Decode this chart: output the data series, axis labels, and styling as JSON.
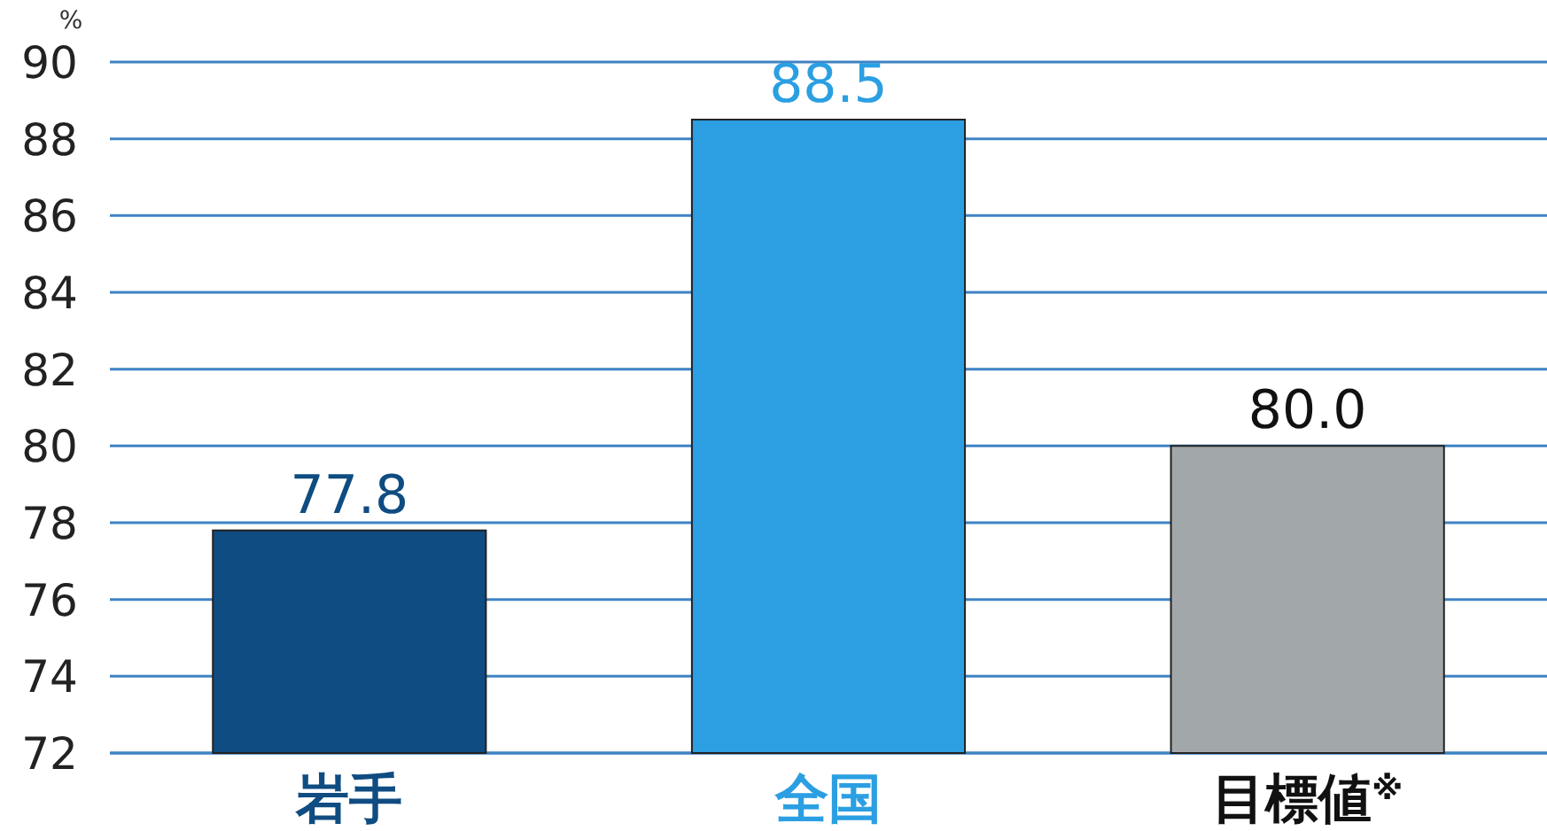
{
  "chart_data": {
    "type": "bar",
    "ylabel": "%",
    "categories": [
      "岩手",
      "全国",
      "目標値$^{※}$"
    ],
    "values": [
      77.8,
      88.5,
      80.0
    ],
    "colors": [
      "#0f4c81",
      "#2b9fe2",
      "#a2a7aa"
    ],
    "value_labels": [
      "77.8",
      "88.5",
      "80.0"
    ],
    "ylim": [
      72,
      90
    ],
    "yticks": [
      72,
      74,
      76,
      78,
      80,
      82,
      84,
      86,
      88,
      90
    ],
    "grid": "y"
  }
}
